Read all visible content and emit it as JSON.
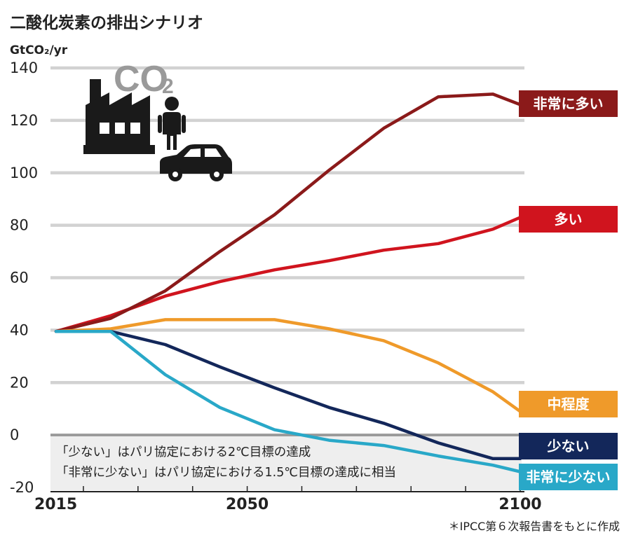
{
  "chart_data": {
    "type": "line",
    "title": "二酸化炭素の排出シナリオ",
    "ylabel": "GtCO₂/yr",
    "xlim": [
      2015,
      2100
    ],
    "ylim": [
      -20,
      140
    ],
    "y_ticks": [
      140,
      120,
      100,
      80,
      60,
      40,
      20,
      0,
      -20
    ],
    "x_tick_labels": [
      "2015",
      "2050",
      "2100"
    ],
    "x_minor_ticks": [
      2020,
      2030,
      2040,
      2050,
      2060,
      2070,
      2080,
      2090,
      2100
    ],
    "grid": true,
    "series": [
      {
        "name": "非常に多い",
        "color": "#8b1a1a",
        "x": [
          2015,
          2025,
          2035,
          2045,
          2055,
          2065,
          2075,
          2085,
          2095,
          2100
        ],
        "y": [
          39.5,
          44.5,
          55,
          70,
          84,
          101,
          117,
          129,
          130,
          126
        ]
      },
      {
        "name": "多い",
        "color": "#d0141e",
        "x": [
          2015,
          2025,
          2035,
          2045,
          2055,
          2065,
          2075,
          2085,
          2095,
          2100
        ],
        "y": [
          39.5,
          45.5,
          53,
          58.5,
          63,
          66.5,
          70.5,
          73,
          78.5,
          83
        ]
      },
      {
        "name": "中程度",
        "color": "#ef9a2a",
        "x": [
          2015,
          2025,
          2035,
          2045,
          2055,
          2065,
          2075,
          2085,
          2095,
          2100
        ],
        "y": [
          39.5,
          40.5,
          44,
          44,
          44,
          40.5,
          36,
          27.5,
          16.5,
          9
        ]
      },
      {
        "name": "少ない",
        "color": "#13275a",
        "x": [
          2015,
          2025,
          2035,
          2045,
          2055,
          2065,
          2075,
          2085,
          2095,
          2100
        ],
        "y": [
          39.5,
          39.5,
          34.5,
          26,
          18,
          10.5,
          4.5,
          -3,
          -9,
          -9
        ]
      },
      {
        "name": "非常に少ない",
        "color": "#29a8c8",
        "x": [
          2015,
          2025,
          2035,
          2045,
          2055,
          2065,
          2075,
          2085,
          2095,
          2100
        ],
        "y": [
          39.5,
          39.5,
          23,
          10.5,
          2,
          -2,
          -4,
          -8,
          -11.5,
          -14
        ]
      }
    ],
    "note_lines": [
      "「少ない」はパリ協定における2℃目標の達成",
      "「非常に少ない」はパリ協定における1.5℃目標の達成に相当"
    ],
    "source": "＊IPCC第６次報告書をもとに作成"
  },
  "icons": {
    "factory": "factory-icon",
    "person": "person-icon",
    "car": "car-icon"
  },
  "co2_label": {
    "main": "CO",
    "sub": "2"
  },
  "colors": {
    "grid": "#d2d2d2",
    "zero_line": "#9a9a9a",
    "note_bg": "#eeeeee",
    "icon": "#1a1a1a"
  }
}
